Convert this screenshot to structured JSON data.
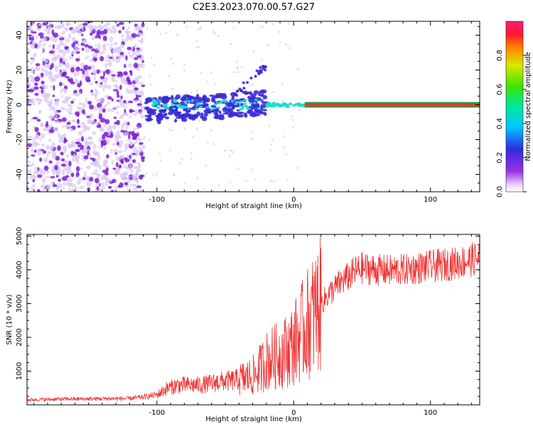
{
  "title": "C2E3.2023.070.00.57.G27",
  "chart_data": [
    {
      "type": "heatmap",
      "xlabel": "Height of straight line (km)",
      "ylabel": "Frequency (Hz)",
      "xlim": [
        -195,
        136
      ],
      "ylim": [
        -50,
        48
      ],
      "x_ticks": [
        -100,
        0,
        100
      ],
      "y_ticks": [
        -40,
        -20,
        0,
        20,
        40
      ],
      "colorbar": {
        "label": "Normalized spectral amplitude",
        "range": [
          0,
          1
        ],
        "ticks": [
          0.0,
          0.2,
          0.4,
          0.6,
          0.8
        ]
      },
      "colors": {
        "noise_faint": "#d9c8f2",
        "noise_strong": "#7a1fd6",
        "signal_low": "#3a2ad8",
        "signal_mid": "#16e0c8",
        "signal_high": "#ff2a3a",
        "signal_band": "#ff2a3a"
      }
    },
    {
      "type": "line",
      "xlabel": "Height of straight line (km)",
      "ylabel": "SNR (10 * v/v)",
      "xlim": [
        -195,
        136
      ],
      "ylim": [
        0,
        5050
      ],
      "x_ticks": [
        -100,
        0,
        100
      ],
      "y_ticks": [
        1000,
        2000,
        3000,
        4000,
        5000
      ],
      "color": "#ef3232",
      "series": [
        {
          "x": [
            -195,
            -170,
            -145,
            -120,
            -110,
            -100,
            -92,
            -85,
            -75,
            -65,
            -55,
            -45,
            -38,
            -33,
            -28,
            -24,
            -20,
            -15,
            -10,
            -5,
            0,
            5,
            10,
            15,
            20,
            25,
            30,
            35,
            40,
            45,
            50,
            60,
            70,
            80,
            90,
            100,
            110,
            120,
            130,
            136
          ],
          "y": [
            150,
            170,
            180,
            190,
            230,
            300,
            500,
            580,
            580,
            600,
            680,
            720,
            760,
            820,
            900,
            1100,
            1300,
            1400,
            1500,
            1600,
            1800,
            2100,
            2400,
            2700,
            3000,
            3250,
            3450,
            3650,
            3800,
            3950,
            4050,
            4000,
            3980,
            4000,
            4050,
            4100,
            4150,
            4200,
            4300,
            4350
          ]
        }
      ]
    }
  ]
}
